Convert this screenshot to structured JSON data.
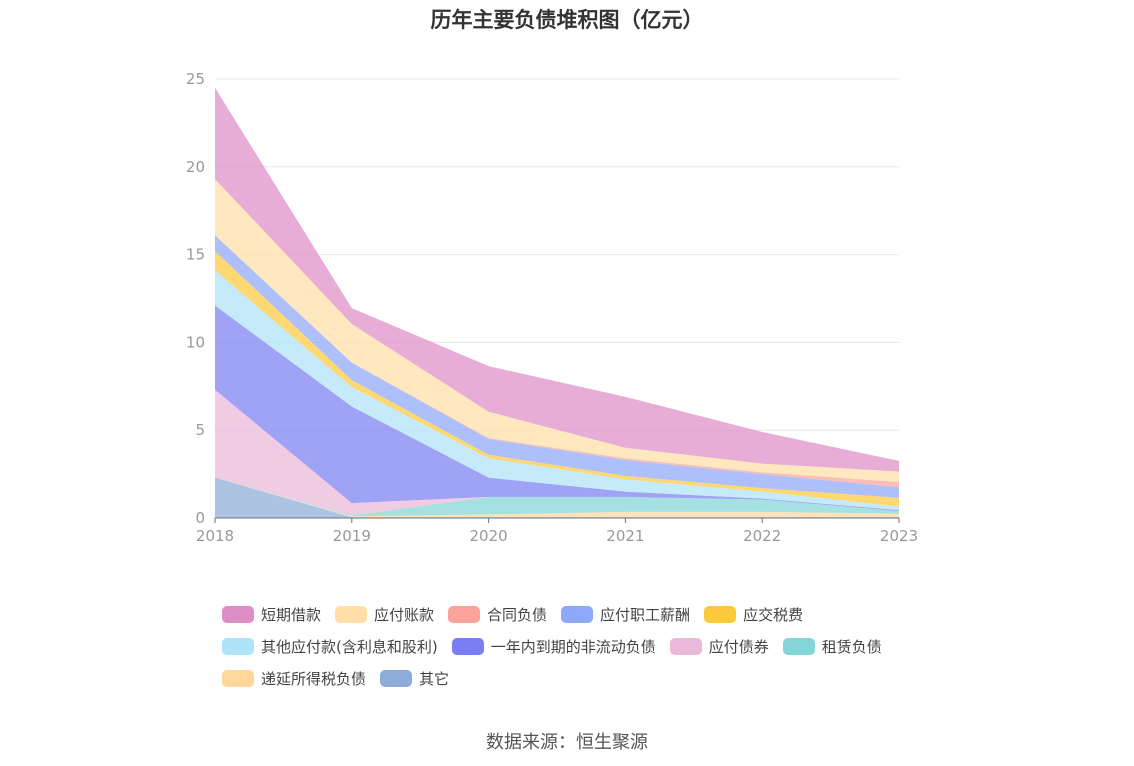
{
  "chart_data": {
    "type": "area",
    "stacked": true,
    "title": "历年主要负债堆积图（亿元）",
    "source": "数据来源：恒生聚源",
    "x": [
      "2018",
      "2019",
      "2020",
      "2021",
      "2022",
      "2023"
    ],
    "ylim": [
      0,
      25
    ],
    "yticks": [
      "0",
      "5",
      "10",
      "15",
      "20",
      "25"
    ],
    "grid": true,
    "legend_position": "bottom",
    "series": [
      {
        "name": "其它",
        "color": "#8eacd8",
        "values": [
          2.3,
          0.05,
          0.05,
          0.05,
          0.05,
          0.05
        ]
      },
      {
        "name": "递延所得税负债",
        "color": "#ffd79b",
        "values": [
          0,
          0.05,
          0.15,
          0.3,
          0.3,
          0.2
        ]
      },
      {
        "name": "租赁负债",
        "color": "#84d6d6",
        "values": [
          0,
          0.05,
          1.0,
          0.85,
          0.7,
          0.15
        ]
      },
      {
        "name": "应付债券",
        "color": "#eab9da",
        "values": [
          5.0,
          0.7,
          0,
          0,
          0,
          0
        ]
      },
      {
        "name": "一年内到期的非流动负债",
        "color": "#7b7ef2",
        "values": [
          4.8,
          5.5,
          1.1,
          0.3,
          0.05,
          0.05
        ]
      },
      {
        "name": "其他应付款(含利息和股利)",
        "color": "#afe3fa",
        "values": [
          2.0,
          1.1,
          1.1,
          0.7,
          0.4,
          0.2
        ]
      },
      {
        "name": "应交税费",
        "color": "#fcc93d",
        "values": [
          1.1,
          0.4,
          0.2,
          0.2,
          0.2,
          0.5
        ]
      },
      {
        "name": "应付职工薪酬",
        "color": "#8ea8fa",
        "values": [
          0.9,
          1.0,
          0.9,
          0.9,
          0.8,
          0.6
        ]
      },
      {
        "name": "合同负债",
        "color": "#fba39a",
        "values": [
          0,
          0,
          0.05,
          0.1,
          0.1,
          0.3
        ]
      },
      {
        "name": "应付账款",
        "color": "#ffdea8",
        "values": [
          3.2,
          2.2,
          1.5,
          0.6,
          0.5,
          0.6
        ]
      },
      {
        "name": "短期借款",
        "color": "#de8ec6",
        "values": [
          5.2,
          0.9,
          2.6,
          2.9,
          1.8,
          0.6
        ]
      }
    ],
    "legend_order": [
      "短期借款",
      "应付账款",
      "合同负债",
      "应付职工薪酬",
      "应交税费",
      "其他应付款(含利息和股利)",
      "一年内到期的非流动负债",
      "应付债券",
      "租赁负债",
      "递延所得税负债",
      "其它"
    ],
    "legend_rows": [
      5,
      4,
      2
    ]
  }
}
